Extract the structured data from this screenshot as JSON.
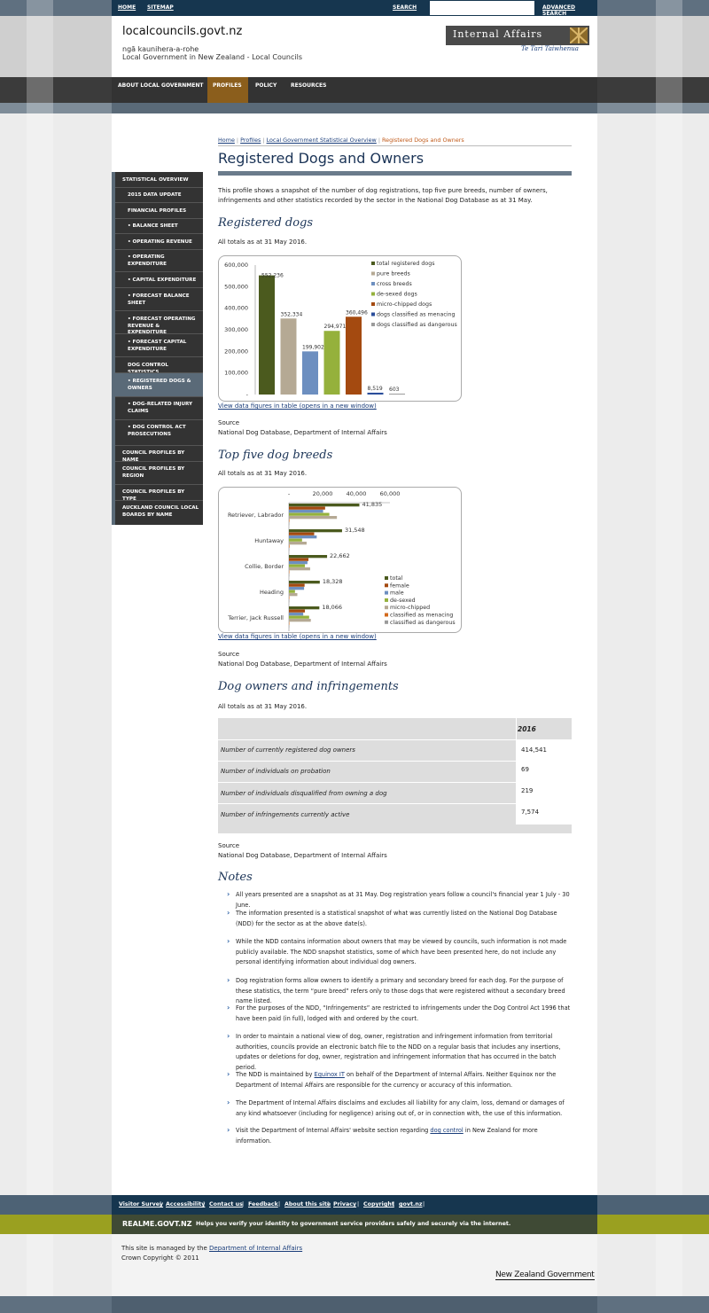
{
  "colors": {
    "brand_dark": "#16364f",
    "nav": "#333333",
    "nav_active": "#8b5e1c",
    "accent_olive": "#8b9a13"
  },
  "topbar": {
    "home": "HOME",
    "sitemap": "SITEMAP",
    "search_label": "SEARCH",
    "search_value": "",
    "advanced": "ADVANCED SEARCH",
    "search_icon": "search-icon"
  },
  "header": {
    "title": "localcouncils.govt.nz",
    "sub1": "ngā kaunihera-a-rohe",
    "sub2": "Local Government in New Zealand - Local Councils",
    "dia": "Internal Affairs",
    "dia_sub": "Te Tari Taiwhenua"
  },
  "nav": {
    "items": [
      "ABOUT LOCAL GOVERNMENT",
      "PROFILES",
      "POLICY",
      "RESOURCES"
    ]
  },
  "breadcrumb": {
    "home": "Home",
    "profiles": "Profiles",
    "overview": "Local Government Statistical Overview",
    "current": "Registered Dogs and Owners",
    "sep": "|"
  },
  "sidebar": {
    "items": [
      "STATISTICAL OVERVIEW",
      "2015 DATA UPDATE",
      "FINANCIAL PROFILES",
      "• BALANCE SHEET",
      "• OPERATING REVENUE",
      "• OPERATING EXPENDITURE",
      "• CAPITAL EXPENDITURE",
      "• FORECAST BALANCE SHEET",
      "• FORECAST OPERATING REVENUE & EXPENDITURE",
      "• FORECAST CAPITAL EXPENDITURE",
      "DOG CONTROL STATISTICS",
      "• REGISTERED DOGS & OWNERS",
      "• DOG-RELATED INJURY CLAIMS",
      "• DOG CONTROL ACT PROSECUTIONS",
      "COUNCIL PROFILES BY NAME",
      "COUNCIL PROFILES BY REGION",
      "COUNCIL PROFILES BY TYPE",
      "AUCKLAND COUNCIL LOCAL BOARDS BY NAME"
    ]
  },
  "page": {
    "title": "Registered Dogs and Owners",
    "intro": "This profile shows a snapshot of the number of dog registrations, top five pure breeds, number of owners, infringements and other statistics recorded by the sector in the National Dog Database as at 31 May.",
    "s1_title": "Registered dogs",
    "s1_asat": "All totals as at 31 May 2016.",
    "s2_title": "Top five dog breeds",
    "s2_asat": "All totals as at 31 May 2016.",
    "s3_title": "Dog owners and infringements",
    "s3_asat": "All totals as at 31 May 2016.",
    "view_link": "View data figures in table (opens in a new window)",
    "source_label": "Source",
    "source_text": "National Dog Database, Department of Internal Affairs",
    "notes_title": "Notes"
  },
  "chart_data": [
    {
      "type": "bar",
      "ylim": [
        0,
        600000
      ],
      "yticks": [
        "600,000",
        "500,000",
        "400,000",
        "300,000",
        "200,000",
        "100,000",
        "-"
      ],
      "series": [
        {
          "name": "total registered dogs",
          "value": 552236,
          "label": "552,236",
          "color": "#4b5a1e"
        },
        {
          "name": "pure breeds",
          "value": 352334,
          "label": "352,334",
          "color": "#b5a994"
        },
        {
          "name": "cross breeds",
          "value": 199902,
          "label": "199,902",
          "color": "#6d8fc0"
        },
        {
          "name": "de-sexed dogs",
          "value": 294971,
          "label": "294,971",
          "color": "#95b13c"
        },
        {
          "name": "micro-chipped dogs",
          "value": 360496,
          "label": "360,496",
          "color": "#a44a10"
        },
        {
          "name": "dogs classified as menacing",
          "value": 8519,
          "label": "8,519",
          "color": "#2a4d9a"
        },
        {
          "name": "dogs classified as dangerous",
          "value": 603,
          "label": "603",
          "color": "#9b9b9b"
        }
      ]
    },
    {
      "type": "bar",
      "orientation": "horizontal",
      "xlim": [
        0,
        60000
      ],
      "xticks": [
        "-",
        "20,000",
        "40,000",
        "60,000"
      ],
      "categories": [
        "Retriever, Labrador",
        "Huntaway",
        "Collie, Border",
        "Heading",
        "Terrier, Jack Russell"
      ],
      "series": [
        {
          "name": "total",
          "color": "#4b5a1e",
          "values": [
            41835,
            31548,
            22662,
            18328,
            18066
          ]
        },
        {
          "name": "female",
          "color": "#a44a10",
          "values": [
            21500,
            15000,
            11600,
            9300,
            9500
          ]
        },
        {
          "name": "male",
          "color": "#6d8fc0",
          "values": [
            20300,
            16500,
            11000,
            9000,
            8500
          ]
        },
        {
          "name": "de-sexed",
          "color": "#95b13c",
          "values": [
            24000,
            7800,
            9500,
            3600,
            12000
          ]
        },
        {
          "name": "micro-chipped",
          "color": "#b5a994",
          "values": [
            28500,
            10500,
            12600,
            5000,
            13000
          ]
        },
        {
          "name": "classified as menacing",
          "color": "#d26a1c",
          "values": [
            300,
            350,
            120,
            80,
            150
          ]
        },
        {
          "name": "classified as dangerous",
          "color": "#9b9b9b",
          "values": [
            30,
            40,
            15,
            10,
            20
          ]
        }
      ],
      "value_labels": [
        "41,835",
        "31,548",
        "22,662",
        "18,328",
        "18,066"
      ]
    }
  ],
  "table": {
    "year": "2016",
    "rows": [
      {
        "label": "Number of currently registered dog owners",
        "value": "414,541"
      },
      {
        "label": "Number of individuals on probation",
        "value": "69"
      },
      {
        "label": "Number of individuals disqualified from owning a dog",
        "value": "219"
      },
      {
        "label": "Number of infringements currently active",
        "value": "7,574"
      }
    ]
  },
  "notes": [
    "All years presented are a snapshot as at 31 May. Dog registration years follow a council's financial year 1 July - 30 June.",
    "The information presented is a statistical snapshot of what was currently listed on the National Dog Database (NDD) for the sector as at the above date(s).",
    "While the NDD contains information about owners that may be viewed by councils, such information is not made publicly available. The NDD snapshot statistics, some of which have been presented here, do not include any personal identifying information about individual dog owners.",
    "Dog registration forms allow owners to identify a primary and secondary breed for each dog. For the purpose of these statistics, the term “pure breed” refers only to those dogs that were registered without a secondary breed name listed.",
    "For the purposes of the NDD, “Infringements” are restricted to infringements under the Dog Control Act 1996 that have been paid (in full), lodged with and ordered by the court.",
    "In order to maintain a national view of dog, owner, registration and infringement information from territorial authorities, councils provide an electronic batch file to the NDD on a regular basis that includes any insertions, updates or deletions for dog, owner, registration and infringement information that has occurred in the batch period."
  ],
  "note7": {
    "pre": "The NDD is maintained by ",
    "link": "Equinox IT",
    "post": " on behalf of the Department of Internal Affairs. Neither Equinox nor the Department of Internal Affairs are responsible for the currency or accuracy of this information."
  },
  "note8": "The Department of Internal Affairs disclaims and excludes all liability for any claim, loss, demand or damages of any kind whatsoever (including for negligence) arising out of, or in connection with, the use of this information.",
  "note9": {
    "pre": "Visit the Department of Internal Affairs' website section regarding ",
    "link": "dog control",
    "post": " in New Zealand for more information."
  },
  "footer": {
    "links": [
      "Visitor Survey",
      "Accessibility",
      "Contact us",
      "Feedback",
      "About this site",
      "Privacy",
      "Copyright",
      "govt.nz"
    ],
    "realme": "REALME.GOVT.NZ",
    "realme_text": "Helps you verify your identity to government service providers safely and securely via the internet.",
    "managed_pre": "This site is managed by the ",
    "managed_link": "Department of Internal Affairs",
    "copyright": "Crown Copyright © 2011",
    "nzgov": "New Zealand Government"
  }
}
